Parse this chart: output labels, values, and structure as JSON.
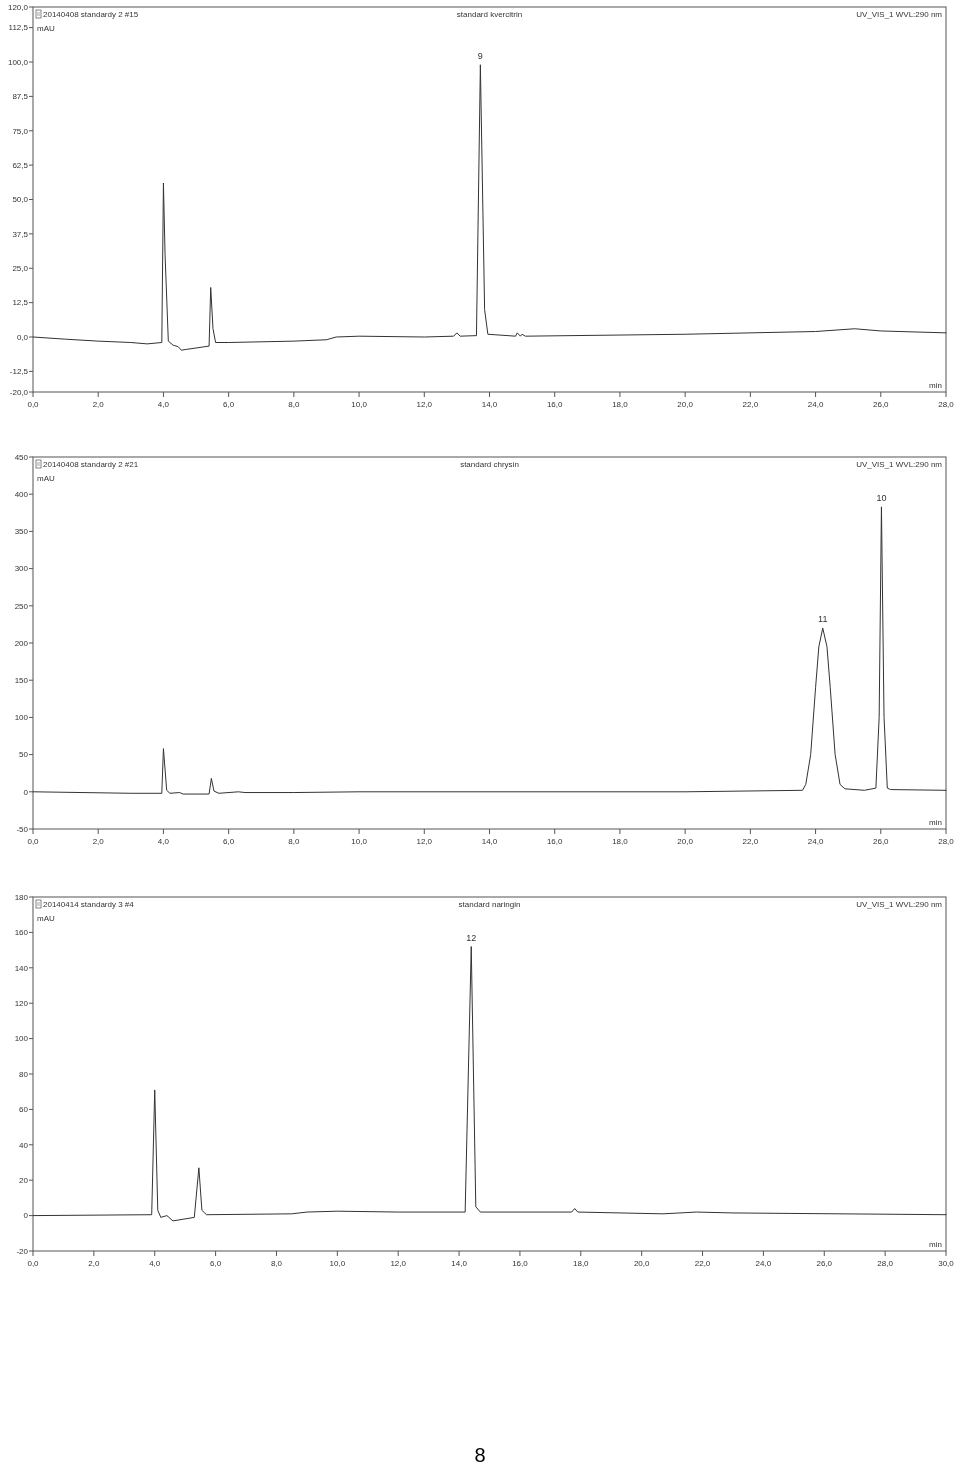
{
  "chart_data": [
    {
      "type": "line",
      "subtitle": "20140408 standardy 2 #15",
      "title": "standard kvercitrin",
      "ylabel": "mAU",
      "xlabel": "min",
      "annotations": [
        "UV_VIS_1 WVL:290 nm",
        {
          "text": "9",
          "x": 13.72,
          "y": 99
        }
      ],
      "x": [
        0,
        1,
        2,
        3,
        3.5,
        3.95,
        4.0,
        4.05,
        4.15,
        4.3,
        4.45,
        4.55,
        4.7,
        5.0,
        5.4,
        5.45,
        5.52,
        5.6,
        6,
        8,
        9,
        9.3,
        10,
        12,
        12.9,
        13.0,
        13.1,
        13.6,
        13.72,
        13.85,
        13.95,
        14.8,
        14.85,
        14.95,
        15.0,
        15.1,
        20,
        24,
        25.2,
        26,
        28
      ],
      "series": [
        {
          "color": "#333333",
          "values": [
            0,
            -0.8,
            -1.5,
            -2,
            -2.5,
            -2,
            56,
            30,
            -1.5,
            -3,
            -3.5,
            -4.8,
            -4.5,
            -4,
            -3.3,
            18,
            3,
            -2,
            -2,
            -1.5,
            -1,
            0,
            0.3,
            0,
            0.3,
            1.5,
            0.3,
            0.5,
            99,
            10,
            1,
            0.3,
            1.5,
            0.3,
            1,
            0.3,
            1,
            2,
            3,
            2.2,
            1.5
          ]
        }
      ],
      "xlim": [
        0,
        28
      ],
      "xticks": [
        {
          "value": 0,
          "label": "0,0"
        },
        {
          "value": 2,
          "label": "2,0"
        },
        {
          "value": 4,
          "label": "4,0"
        },
        {
          "value": 6,
          "label": "6,0"
        },
        {
          "value": 8,
          "label": "8,0"
        },
        {
          "value": 10,
          "label": "10,0"
        },
        {
          "value": 12,
          "label": "12,0"
        },
        {
          "value": 14,
          "label": "14,0"
        },
        {
          "value": 16,
          "label": "16,0"
        },
        {
          "value": 18,
          "label": "18,0"
        },
        {
          "value": 20,
          "label": "20,0"
        },
        {
          "value": 22,
          "label": "22,0"
        },
        {
          "value": 24,
          "label": "24,0"
        },
        {
          "value": 26,
          "label": "26,0"
        },
        {
          "value": 28,
          "label": "28,0"
        }
      ],
      "ylim": [
        -20,
        120
      ],
      "yticks": [
        {
          "value": -20,
          "label": "-20,0"
        },
        {
          "value": -12.5,
          "label": "-12,5"
        },
        {
          "value": 0,
          "label": "0,0"
        },
        {
          "value": 12.5,
          "label": "12,5"
        },
        {
          "value": 25,
          "label": "25,0"
        },
        {
          "value": 37.5,
          "label": "37,5"
        },
        {
          "value": 50,
          "label": "50,0"
        },
        {
          "value": 62.5,
          "label": "62,5"
        },
        {
          "value": 75,
          "label": "75,0"
        },
        {
          "value": 87.5,
          "label": "87,5"
        },
        {
          "value": 100,
          "label": "100,0"
        },
        {
          "value": 112.5,
          "label": "112,5"
        },
        {
          "value": 120,
          "label": "120,0"
        }
      ],
      "grid": false
    },
    {
      "type": "line",
      "subtitle": "20140408 standardy 2 #21",
      "title": "standard chrysin",
      "ylabel": "mAU",
      "xlabel": "min",
      "annotations": [
        "UV_VIS_1 WVL:290 nm",
        {
          "text": "11",
          "x": 24.22,
          "y": 220
        },
        {
          "text": "10",
          "x": 26.02,
          "y": 383
        }
      ],
      "x": [
        0,
        3,
        3.95,
        4.0,
        4.1,
        4.2,
        4.5,
        4.6,
        5.4,
        5.47,
        5.55,
        5.7,
        6.3,
        6.5,
        8,
        10,
        20,
        23.6,
        23.7,
        23.85,
        24.0,
        24.1,
        24.22,
        24.35,
        24.45,
        24.6,
        24.75,
        24.9,
        25.5,
        25.85,
        25.95,
        26.02,
        26.1,
        26.2,
        26.3,
        28
      ],
      "series": [
        {
          "color": "#333333",
          "values": [
            0,
            -2,
            -2,
            58,
            2,
            -2,
            -1,
            -3,
            -3,
            18,
            1,
            -2,
            0,
            -1,
            -1,
            0,
            0,
            2,
            10,
            50,
            140,
            195,
            220,
            195,
            140,
            50,
            10,
            4,
            2,
            5,
            100,
            383,
            100,
            5,
            3,
            2
          ]
        }
      ],
      "xlim": [
        0,
        28
      ],
      "xticks": [
        {
          "value": 0,
          "label": "0,0"
        },
        {
          "value": 2,
          "label": "2,0"
        },
        {
          "value": 4,
          "label": "4,0"
        },
        {
          "value": 6,
          "label": "6,0"
        },
        {
          "value": 8,
          "label": "8,0"
        },
        {
          "value": 10,
          "label": "10,0"
        },
        {
          "value": 12,
          "label": "12,0"
        },
        {
          "value": 14,
          "label": "14,0"
        },
        {
          "value": 16,
          "label": "16,0"
        },
        {
          "value": 18,
          "label": "18,0"
        },
        {
          "value": 20,
          "label": "20,0"
        },
        {
          "value": 22,
          "label": "22,0"
        },
        {
          "value": 24,
          "label": "24,0"
        },
        {
          "value": 26,
          "label": "26,0"
        },
        {
          "value": 28,
          "label": "28,0"
        }
      ],
      "ylim": [
        -50,
        450
      ],
      "yticks": [
        -50,
        0,
        50,
        100,
        150,
        200,
        250,
        300,
        350,
        400,
        450
      ],
      "grid": false
    },
    {
      "type": "line",
      "subtitle": "20140414 standardy 3 #4",
      "title": "standard naringin",
      "ylabel": "mAU",
      "xlabel": "min",
      "annotations": [
        "UV_VIS_1 WVL:290 nm",
        {
          "text": "12",
          "x": 14.4,
          "y": 152
        },
        "8"
      ],
      "x": [
        0,
        3.9,
        4.0,
        4.1,
        4.2,
        4.4,
        4.6,
        5.3,
        5.45,
        5.55,
        5.7,
        8.5,
        9,
        10,
        12,
        14.2,
        14.4,
        14.55,
        14.7,
        17.7,
        17.8,
        17.9,
        20.7,
        21.8,
        23,
        30
      ],
      "series": [
        {
          "color": "#333333",
          "values": [
            0,
            0.5,
            71,
            3,
            -1,
            0,
            -3,
            -1,
            27,
            3,
            0.5,
            1,
            2,
            2.5,
            2,
            2,
            152,
            5,
            2,
            2,
            4,
            2,
            1,
            2,
            1.5,
            0.5
          ]
        }
      ],
      "xlim": [
        0,
        30
      ],
      "xticks": [
        {
          "value": 0,
          "label": "0,0"
        },
        {
          "value": 2,
          "label": "2,0"
        },
        {
          "value": 4,
          "label": "4,0"
        },
        {
          "value": 6,
          "label": "6,0"
        },
        {
          "value": 8,
          "label": "8,0"
        },
        {
          "value": 10,
          "label": "10,0"
        },
        {
          "value": 12,
          "label": "12,0"
        },
        {
          "value": 14,
          "label": "14,0"
        },
        {
          "value": 16,
          "label": "16,0"
        },
        {
          "value": 18,
          "label": "18,0"
        },
        {
          "value": 20,
          "label": "20,0"
        },
        {
          "value": 22,
          "label": "22,0"
        },
        {
          "value": 24,
          "label": "24,0"
        },
        {
          "value": 26,
          "label": "26,0"
        },
        {
          "value": 28,
          "label": "28,0"
        },
        {
          "value": 30,
          "label": "30,0"
        }
      ],
      "ylim": [
        -20,
        180
      ],
      "yticks": [
        -20,
        0,
        20,
        40,
        60,
        80,
        100,
        120,
        140,
        160,
        180
      ],
      "grid": false
    }
  ]
}
